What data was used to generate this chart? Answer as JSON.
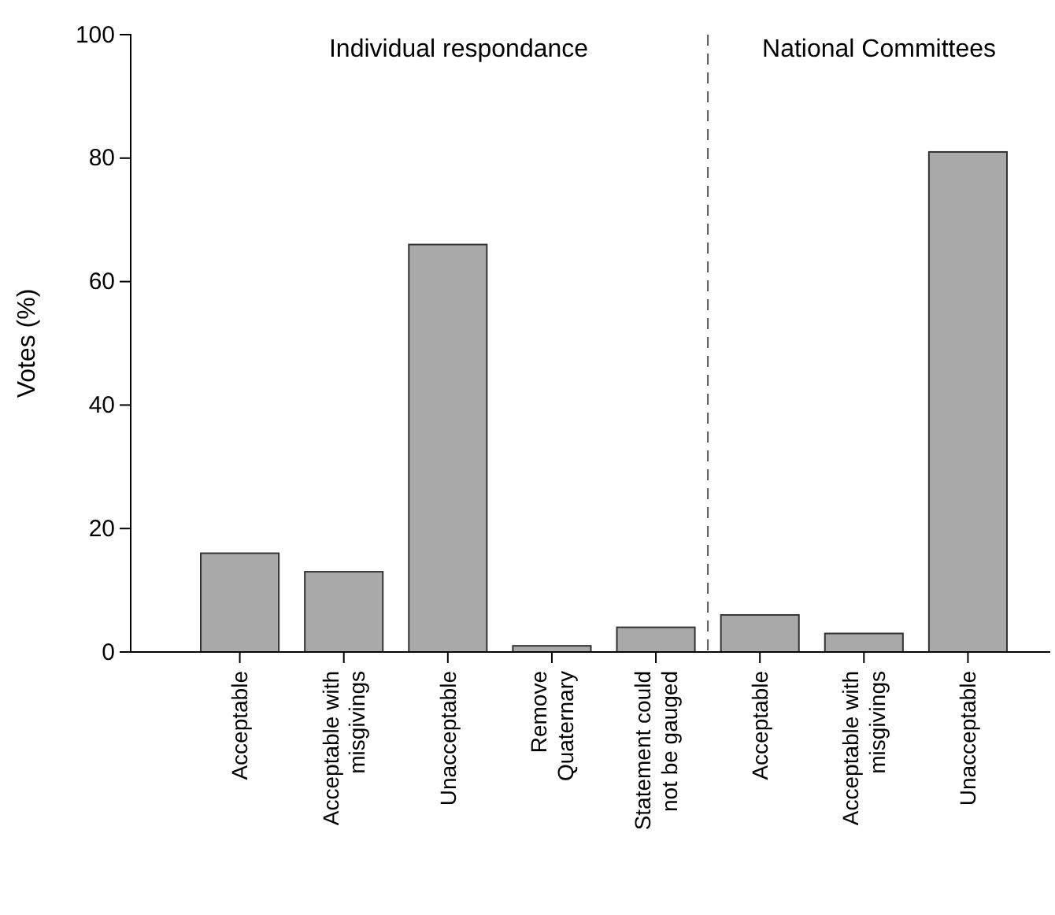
{
  "chart_data": {
    "type": "bar",
    "ylabel": "Votes (%)",
    "categories": [
      "Acceptable",
      "Acceptable with misgivings",
      "Unacceptable",
      "Remove Quaternary",
      "Statement could not be gauged",
      "Acceptable",
      "Acceptable with misgivings",
      "Unacceptable"
    ],
    "values": [
      16,
      13,
      66,
      1,
      4,
      6,
      3,
      81
    ],
    "color": "#a9a9a9",
    "ylim": [
      0,
      100
    ],
    "yticks": [
      0,
      20,
      40,
      60,
      80,
      100
    ],
    "grid": false,
    "annotations": [
      "Individual respondance",
      "National Committees"
    ]
  }
}
